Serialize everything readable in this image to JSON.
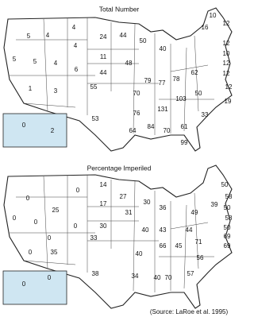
{
  "maps": [
    {
      "title": "Total Number",
      "values": [
        5,
        5,
        4,
        4,
        24,
        44,
        4,
        11,
        5,
        4,
        6,
        44,
        48,
        1,
        3,
        55,
        53,
        50,
        40,
        79,
        77,
        78,
        62,
        50,
        103,
        131,
        70,
        76,
        64,
        84,
        70,
        61,
        99,
        33,
        10,
        16,
        12,
        12,
        10,
        12,
        12,
        12,
        19,
        0,
        2
      ]
    },
    {
      "title": "Percentage Imperiled",
      "values": [
        0,
        0,
        25,
        0,
        14,
        27,
        17,
        30,
        0,
        0,
        0,
        35,
        0,
        33,
        38,
        31,
        30,
        36,
        40,
        43,
        49,
        44,
        45,
        71,
        66,
        40,
        34,
        40,
        70,
        57,
        56,
        50,
        39,
        58,
        50,
        58,
        50,
        69,
        69,
        0,
        0
      ]
    }
  ],
  "source": "(Source: LaRoe et al. 1995)"
}
